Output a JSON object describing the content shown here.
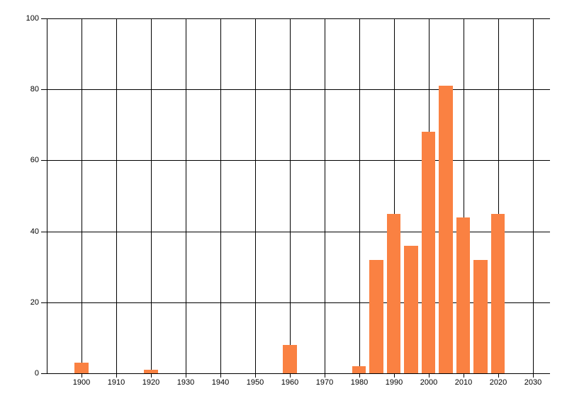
{
  "chart_data": {
    "type": "bar",
    "title": "",
    "xlabel": "",
    "ylabel": "",
    "x_range": [
      1890,
      2035
    ],
    "y_range": [
      0,
      100
    ],
    "x_ticks": [
      1900,
      1910,
      1920,
      1930,
      1940,
      1950,
      1960,
      1970,
      1980,
      1990,
      2000,
      2010,
      2020,
      2030
    ],
    "x_tick_labels": [
      "1900",
      "1910",
      "1920",
      "1930",
      "1940",
      "1950",
      "1960",
      "1970",
      "1980",
      "1990",
      "2000",
      "2010",
      "2020",
      "2030"
    ],
    "y_ticks": [
      0,
      20,
      40,
      60,
      80,
      100
    ],
    "y_tick_labels": [
      "0",
      "20",
      "40",
      "60",
      "80",
      "100"
    ],
    "grid": true,
    "legend_position": "none",
    "bar_width_years": 4,
    "bars": [
      {
        "x": 1900,
        "value": 3
      },
      {
        "x": 1920,
        "value": 1
      },
      {
        "x": 1960,
        "value": 8
      },
      {
        "x": 1980,
        "value": 2
      },
      {
        "x": 1985,
        "value": 32
      },
      {
        "x": 1990,
        "value": 45
      },
      {
        "x": 1995,
        "value": 36
      },
      {
        "x": 2000,
        "value": 68
      },
      {
        "x": 2005,
        "value": 81
      },
      {
        "x": 2010,
        "value": 44
      },
      {
        "x": 2015,
        "value": 32
      },
      {
        "x": 2020,
        "value": 45
      }
    ],
    "colors": {
      "bar_fill": "#FA8142",
      "grid_line": "#000000",
      "tick_text": "#000000",
      "background": "#FFFFFF"
    }
  }
}
